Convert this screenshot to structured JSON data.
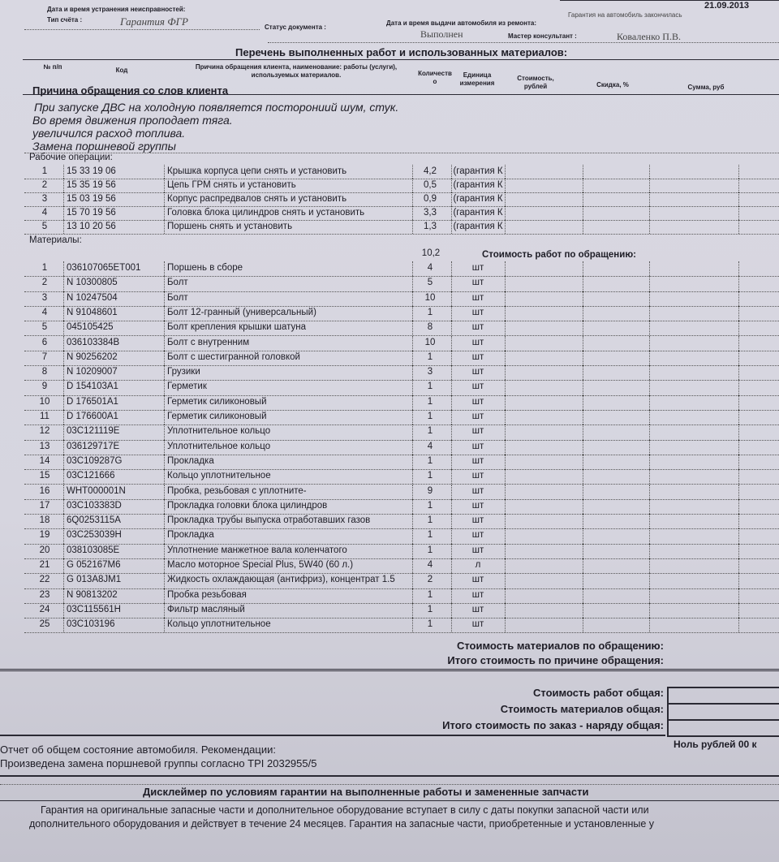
{
  "header": {
    "date": "21.09.2013",
    "warranty_status": "Гарантия на автомобиль закончилась",
    "repair_datetime_label": "Дата и время устранения неисправностей:",
    "invoice_type_label": "Тип счёта :",
    "invoice_type_value": "Гарантия ФГР",
    "doc_status_label": "Статус документа :",
    "doc_status_value": "Выполнен",
    "issue_datetime_label": "Дата и время выдачи автомобиля из ремонта:",
    "master_label": "Мастер консультант :",
    "master_value": "Коваленко П.В."
  },
  "table": {
    "title": "Перечень выполненных работ и использованных материалов:",
    "columns": [
      "№ п/п",
      "Код",
      "Причина обращения клиента, наименование: работы (услуги), используемых материалов.",
      "Количество",
      "Единица измерения",
      "Стоимость, рублей",
      "Скидка, %",
      "Сумма, руб"
    ]
  },
  "complaint": {
    "heading": "Причина обращения со слов клиента",
    "lines": [
      "При запуске ДВС на холодную появляется посторониий шум, стук.",
      "Во время движения проподает тяга.",
      "увеличился расход  топлива.",
      "Замена поршневой группы"
    ]
  },
  "operations_label": "Рабочие операции:",
  "operations": [
    {
      "n": "1",
      "code": "15 33 19 06",
      "desc": "Крышка корпуса цепи снять и установить",
      "qty": "4,2",
      "unit": "(гарантия К"
    },
    {
      "n": "2",
      "code": "15 35 19 56",
      "desc": "Цепь ГРМ снять и установить",
      "qty": "0,5",
      "unit": "(гарантия К"
    },
    {
      "n": "3",
      "code": "15 03 19 56",
      "desc": "Корпус распредвалов снять и установить",
      "qty": "0,9",
      "unit": "(гарантия К"
    },
    {
      "n": "4",
      "code": "15 70 19 56",
      "desc": "Головка блока цилиндров снять и установить",
      "qty": "3,3",
      "unit": "(гарантия К"
    },
    {
      "n": "5",
      "code": "13 10 20 56",
      "desc": "Поршень снять и установить",
      "qty": "1,3",
      "unit": "(гарантия К"
    }
  ],
  "materials_label": "Материалы:",
  "operations_total": "10,2",
  "work_cost_label": "Стоимость работ по обращению:",
  "materials": [
    {
      "n": "1",
      "code": "036107065ET001",
      "desc": "Поршень в сборе",
      "qty": "4",
      "unit": "шт"
    },
    {
      "n": "2",
      "code": "N  10300805",
      "desc": "Болт",
      "qty": "5",
      "unit": "шт"
    },
    {
      "n": "3",
      "code": "N  10247504",
      "desc": "Болт",
      "qty": "10",
      "unit": "шт"
    },
    {
      "n": "4",
      "code": "N  91048601",
      "desc": "Болт 12-гранный (универсальный)",
      "qty": "1",
      "unit": "шт"
    },
    {
      "n": "5",
      "code": "045105425",
      "desc": "Болт крепления крышки шатуна",
      "qty": "8",
      "unit": "шт"
    },
    {
      "n": "6",
      "code": "036103384B",
      "desc": "Болт с внутренним",
      "qty": "10",
      "unit": "шт"
    },
    {
      "n": "7",
      "code": "N  90256202",
      "desc": "Болт с шестигранной головкой",
      "qty": "1",
      "unit": "шт"
    },
    {
      "n": "8",
      "code": "N  10209007",
      "desc": "Грузики",
      "qty": "3",
      "unit": "шт"
    },
    {
      "n": "9",
      "code": "D  154103A1",
      "desc": "Герметик",
      "qty": "1",
      "unit": "шт"
    },
    {
      "n": "10",
      "code": "D  176501A1",
      "desc": "Герметик силиконовый",
      "qty": "1",
      "unit": "шт"
    },
    {
      "n": "11",
      "code": "D  176600A1",
      "desc": "Герметик силиконовый",
      "qty": "1",
      "unit": "шт"
    },
    {
      "n": "12",
      "code": "03C121119E",
      "desc": "Уплотнительное кольцо",
      "qty": "1",
      "unit": "шт"
    },
    {
      "n": "13",
      "code": "036129717E",
      "desc": "Уплотнительное кольцо",
      "qty": "4",
      "unit": "шт"
    },
    {
      "n": "14",
      "code": "03C109287G",
      "desc": "Прокладка",
      "qty": "1",
      "unit": "шт"
    },
    {
      "n": "15",
      "code": "03C121666",
      "desc": "Кольцо уплотнительное",
      "qty": "1",
      "unit": "шт"
    },
    {
      "n": "16",
      "code": "WHT000001N",
      "desc": "Пробка, резьбовая с уплотните-",
      "qty": "9",
      "unit": "шт"
    },
    {
      "n": "17",
      "code": "03C103383D",
      "desc": "Прокладка головки блока цилиндров",
      "qty": "1",
      "unit": "шт"
    },
    {
      "n": "18",
      "code": "6Q0253115A",
      "desc": "Прокладка трубы выпуска отработавших газов",
      "qty": "1",
      "unit": "шт"
    },
    {
      "n": "19",
      "code": "03C253039H",
      "desc": "Прокладка",
      "qty": "1",
      "unit": "шт"
    },
    {
      "n": "20",
      "code": "038103085E",
      "desc": "Уплотнение манжетное вала коленчатого",
      "qty": "1",
      "unit": "шт"
    },
    {
      "n": "21",
      "code": "G  052167M6",
      "desc": "Масло моторное Special Plus, 5W40 (60 л.)",
      "qty": "4",
      "unit": "л"
    },
    {
      "n": "22",
      "code": "G  013A8JM1",
      "desc": "Жидкость охлаждающая (антифриз), концентрат 1.5",
      "qty": "2",
      "unit": "шт"
    },
    {
      "n": "23",
      "code": "N  90813202",
      "desc": "Пробка резьбовая",
      "qty": "1",
      "unit": "шт"
    },
    {
      "n": "24",
      "code": "03C115561H",
      "desc": "Фильтр масляный",
      "qty": "1",
      "unit": "шт"
    },
    {
      "n": "25",
      "code": "03C103196",
      "desc": "Кольцо уплотнительное",
      "qty": "1",
      "unit": "шт"
    }
  ],
  "totals": {
    "materials_cost_label": "Стоимость материалов по обращению:",
    "complaint_total_label": "Итого стоимость по причине обращения:",
    "work_total_label": "Стоимость работ общая:",
    "materials_total_label": "Стоимость материалов общая:",
    "order_total_label": "Итого стоимость по заказ - наряду общая:",
    "amount_in_words": "Ноль рублей 00 к"
  },
  "report": {
    "heading": "Отчет об общем состояние автомобиля. Рекомендации:",
    "text": "Произведена замена поршневой группы согласно TPI 2032955/5"
  },
  "disclaimer": {
    "heading": "Дисклеймер по условиям гарантии на выполненные работы и замененные запчасти",
    "line1": "Гарантия на оригинальные запасные части и дополнительное оборудование вступает в силу с даты покупки запасной части или",
    "line2": "дополнительного оборудования и действует в течение 24 месяцев. Гарантия на запасные части, приобретенные и установленные у"
  }
}
